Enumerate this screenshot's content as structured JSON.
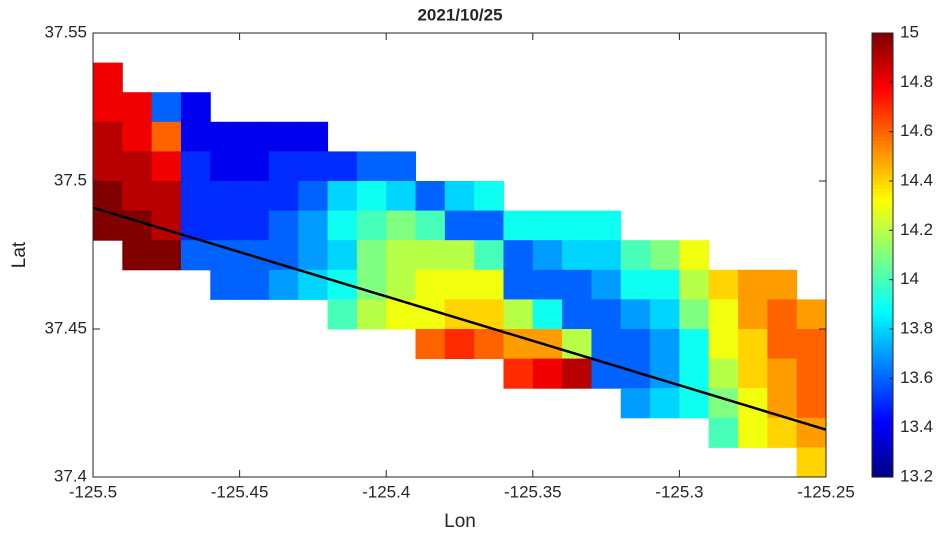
{
  "chart_data": {
    "type": "heatmap",
    "title": "2021/10/25",
    "x_label": "Lon",
    "y_label": "Lat",
    "colormap": "jet",
    "x": [
      -125.495,
      -125.485,
      -125.475,
      -125.465,
      -125.455,
      -125.445,
      -125.435,
      -125.425,
      -125.415,
      -125.405,
      -125.395,
      -125.385,
      -125.375,
      -125.365,
      -125.355,
      -125.345,
      -125.335,
      -125.325,
      -125.315,
      -125.305,
      -125.295,
      -125.285,
      -125.275,
      -125.265,
      -125.255
    ],
    "y": [
      37.545,
      37.535,
      37.525,
      37.515,
      37.505,
      37.495,
      37.485,
      37.475,
      37.465,
      37.455,
      37.445,
      37.435,
      37.425,
      37.415,
      37.405
    ],
    "z": [
      [
        null,
        null,
        null,
        null,
        null,
        null,
        null,
        null,
        null,
        null,
        null,
        null,
        null,
        null,
        null,
        null,
        null,
        null,
        null,
        null,
        null,
        null,
        null,
        null,
        null
      ],
      [
        14.8,
        null,
        null,
        null,
        null,
        null,
        null,
        null,
        null,
        null,
        null,
        null,
        null,
        null,
        null,
        null,
        null,
        null,
        null,
        null,
        null,
        null,
        null,
        null,
        null
      ],
      [
        14.8,
        14.8,
        13.6,
        13.4,
        null,
        null,
        null,
        null,
        null,
        null,
        null,
        null,
        null,
        null,
        null,
        null,
        null,
        null,
        null,
        null,
        null,
        null,
        null,
        null,
        null
      ],
      [
        14.9,
        14.8,
        14.6,
        13.4,
        13.4,
        13.4,
        13.4,
        13.4,
        null,
        null,
        null,
        null,
        null,
        null,
        null,
        null,
        null,
        null,
        null,
        null,
        null,
        null,
        null,
        null,
        null
      ],
      [
        14.9,
        14.9,
        14.8,
        13.5,
        13.4,
        13.4,
        13.5,
        13.5,
        13.5,
        13.6,
        13.6,
        null,
        null,
        null,
        null,
        null,
        null,
        null,
        null,
        null,
        null,
        null,
        null,
        null,
        null
      ],
      [
        15,
        14.9,
        14.9,
        13.5,
        13.5,
        13.5,
        13.5,
        13.6,
        13.8,
        13.9,
        13.8,
        13.6,
        13.8,
        13.9,
        null,
        null,
        null,
        null,
        null,
        null,
        null,
        null,
        null,
        null,
        null
      ],
      [
        15,
        15,
        14.9,
        13.5,
        13.5,
        13.5,
        13.6,
        13.7,
        13.9,
        14.0,
        14.1,
        14.0,
        13.6,
        13.6,
        13.9,
        13.9,
        13.9,
        13.9,
        null,
        null,
        null,
        null,
        null,
        null,
        null
      ],
      [
        null,
        15,
        15,
        13.6,
        13.6,
        13.6,
        13.6,
        13.7,
        13.8,
        14.1,
        14.2,
        14.2,
        14.2,
        14.0,
        13.6,
        13.7,
        13.8,
        13.8,
        14.0,
        14.1,
        14.3,
        null,
        null,
        null,
        null
      ],
      [
        null,
        null,
        null,
        null,
        13.6,
        13.6,
        13.7,
        13.8,
        13.9,
        14.1,
        14.2,
        14.3,
        14.3,
        14.3,
        13.6,
        13.6,
        13.6,
        13.7,
        13.9,
        13.9,
        14.2,
        14.4,
        14.5,
        14.5,
        null
      ],
      [
        null,
        null,
        null,
        null,
        null,
        null,
        null,
        null,
        14.0,
        14.2,
        14.3,
        14.3,
        14.4,
        14.4,
        14.2,
        13.9,
        13.6,
        13.6,
        13.7,
        13.8,
        14.1,
        14.3,
        14.5,
        14.6,
        14.5
      ],
      [
        null,
        null,
        null,
        null,
        null,
        null,
        null,
        null,
        null,
        null,
        null,
        14.6,
        14.7,
        14.6,
        14.5,
        14.5,
        14.2,
        13.6,
        13.6,
        13.7,
        13.9,
        14.3,
        14.4,
        14.6,
        14.6
      ],
      [
        null,
        null,
        null,
        null,
        null,
        null,
        null,
        null,
        null,
        null,
        null,
        null,
        null,
        null,
        14.7,
        14.8,
        14.9,
        13.6,
        13.6,
        13.7,
        13.9,
        14.2,
        14.4,
        14.5,
        14.6
      ],
      [
        null,
        null,
        null,
        null,
        null,
        null,
        null,
        null,
        null,
        null,
        null,
        null,
        null,
        null,
        null,
        null,
        null,
        null,
        13.7,
        13.8,
        13.9,
        14.1,
        14.3,
        14.5,
        14.6
      ],
      [
        null,
        null,
        null,
        null,
        null,
        null,
        null,
        null,
        null,
        null,
        null,
        null,
        null,
        null,
        null,
        null,
        null,
        null,
        null,
        null,
        null,
        14.0,
        14.3,
        14.4,
        14.5
      ],
      [
        null,
        null,
        null,
        null,
        null,
        null,
        null,
        null,
        null,
        null,
        null,
        null,
        null,
        null,
        null,
        null,
        null,
        null,
        null,
        null,
        null,
        null,
        null,
        null,
        14.4
      ]
    ],
    "lines": [
      {
        "x": [
          -125.5,
          -125.25
        ],
        "y": [
          37.491,
          37.416
        ],
        "color": "#000000"
      }
    ],
    "xlim": [
      -125.5,
      -125.25
    ],
    "xticks": [
      -125.5,
      -125.45,
      -125.4,
      -125.35,
      -125.3,
      -125.25
    ],
    "ylim": [
      37.4,
      37.55
    ],
    "yticks": [
      37.4,
      37.45,
      37.5,
      37.55
    ],
    "clim": [
      13.2,
      15
    ],
    "cticks": [
      13.2,
      13.4,
      13.6,
      13.8,
      14,
      14.2,
      14.4,
      14.6,
      14.8,
      15
    ]
  }
}
